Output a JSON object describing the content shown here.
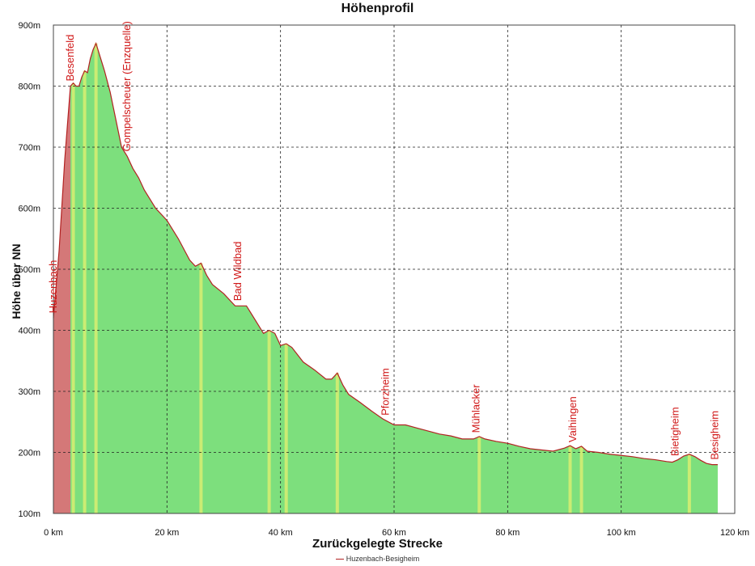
{
  "chart_data": {
    "type": "area",
    "title": "Höhenprofil",
    "xlabel": "Zurückgelegte Strecke",
    "ylabel": "Höhe über NN",
    "xlim": [
      0,
      120
    ],
    "ylim": [
      100,
      900
    ],
    "x_unit": "km",
    "y_unit": "m",
    "x_ticks": [
      "0 km",
      "20 km",
      "40 km",
      "60 km",
      "80 km",
      "100 km",
      "120 km"
    ],
    "y_ticks": [
      "100m",
      "200m",
      "300m",
      "400m",
      "500m",
      "600m",
      "700m",
      "800m",
      "900m"
    ],
    "grid": true,
    "legend_position": "bottom-center",
    "series": [
      {
        "name": "Huzenbach-Besigheim",
        "x": [
          0,
          1,
          2,
          3,
          3.5,
          4,
          4.5,
          5,
          5.5,
          6,
          6.5,
          7,
          7.5,
          8,
          9,
          10,
          11,
          12,
          13,
          14,
          15,
          16,
          17,
          18,
          20,
          22,
          24,
          25,
          26,
          27,
          28,
          30,
          32,
          33,
          34,
          35,
          36,
          37,
          38,
          39,
          40,
          41,
          42,
          43,
          44,
          46,
          48,
          49,
          50,
          51,
          52,
          54,
          56,
          58,
          60,
          62,
          64,
          66,
          68,
          70,
          72,
          74,
          75,
          76,
          78,
          80,
          82,
          84,
          86,
          88,
          90,
          91,
          92,
          93,
          94,
          96,
          98,
          100,
          102,
          104,
          106,
          108,
          109,
          110,
          111,
          112,
          113,
          114,
          115,
          116,
          117
        ],
        "y": [
          420,
          530,
          680,
          800,
          805,
          800,
          800,
          815,
          825,
          822,
          845,
          860,
          870,
          855,
          825,
          790,
          745,
          700,
          685,
          665,
          650,
          630,
          615,
          600,
          580,
          550,
          515,
          505,
          510,
          490,
          475,
          460,
          440,
          440,
          440,
          425,
          410,
          395,
          400,
          395,
          375,
          378,
          372,
          360,
          348,
          335,
          320,
          320,
          330,
          310,
          295,
          282,
          268,
          255,
          245,
          245,
          240,
          235,
          230,
          227,
          222,
          222,
          226,
          222,
          218,
          215,
          210,
          206,
          204,
          202,
          207,
          211,
          206,
          210,
          202,
          200,
          197,
          195,
          193,
          190,
          188,
          185,
          184,
          188,
          194,
          197,
          193,
          187,
          182,
          180,
          180
        ],
        "color": "#b22222",
        "fill_color": "#7ddf7d",
        "steep_fill_color": "#d47878",
        "highlight_color": "#e6f070"
      }
    ],
    "annotations": [
      {
        "text": "Huzenbach",
        "x": 0
      },
      {
        "text": "Besenfeld",
        "x": 3
      },
      {
        "text": "Gompelscheuer (Enzquelle)",
        "x": 13
      },
      {
        "text": "Bad Wildbad",
        "x": 32.5
      },
      {
        "text": "Pforzheim",
        "x": 58.5
      },
      {
        "text": "Mühlacker",
        "x": 74.5
      },
      {
        "text": "Vaihingen",
        "x": 91.5
      },
      {
        "text": "Bietigheim",
        "x": 109.5
      },
      {
        "text": "Besigheim",
        "x": 116.5
      }
    ]
  }
}
